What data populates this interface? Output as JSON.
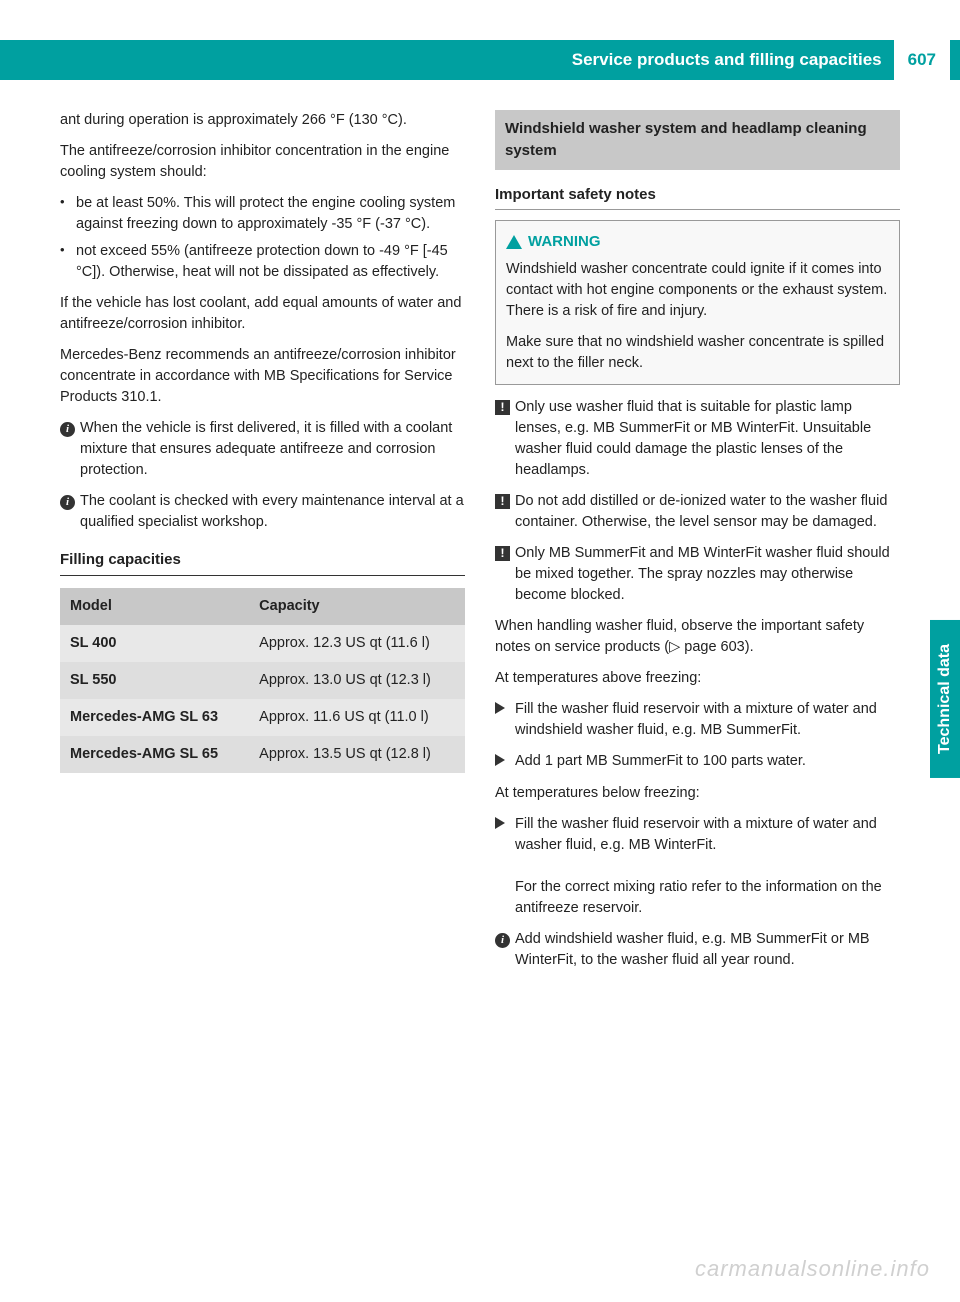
{
  "header": {
    "title": "Service products and filling capacities",
    "page_number": "607"
  },
  "side_tab": "Technical data",
  "left": {
    "p1": "ant during operation is approximately 266 °F (130 °C).",
    "p2": "The antifreeze/corrosion inhibitor concentration in the engine cooling system should:",
    "b1": "be at least 50%. This will protect the engine cooling system against freezing down to approximately -35 °F (-37 °C).",
    "b2": "not exceed 55% (antifreeze protection down to -49 °F [-45 °C]). Otherwise, heat will not be dissipated as effectively.",
    "p3": "If the vehicle has lost coolant, add equal amounts of water and antifreeze/corrosion inhibitor.",
    "p4": "Mercedes-Benz recommends an antifreeze/corrosion inhibitor concentrate in accordance with MB Specifications for Service Products 310.1.",
    "i1": "When the vehicle is first delivered, it is filled with a coolant mixture that ensures adequate antifreeze and corrosion protection.",
    "i2": "The coolant is checked with every maintenance interval at a qualified specialist workshop.",
    "filling_h": "Filling capacities",
    "table": {
      "h_model": "Model",
      "h_cap": "Capacity",
      "rows": [
        {
          "model": "SL 400",
          "cap": "Approx. 12.3 US qt (11.6 l)"
        },
        {
          "model": "SL 550",
          "cap": "Approx. 13.0 US qt (12.3 l)"
        },
        {
          "model": "Mercedes-AMG SL 63",
          "cap": "Approx. 11.6 US qt (11.0 l)"
        },
        {
          "model": "Mercedes-AMG SL 65",
          "cap": "Approx. 13.5 US qt (12.8 l)"
        }
      ]
    }
  },
  "right": {
    "box_title": "Windshield washer system and headlamp cleaning system",
    "sub_h": "Important safety notes",
    "warn_label": "WARNING",
    "warn_p1": "Windshield washer concentrate could ignite if it comes into contact with hot engine components or the exhaust system. There is a risk of fire and injury.",
    "warn_p2": "Make sure that no windshield washer concentrate is spilled next to the filler neck.",
    "n1": "Only use washer fluid that is suitable for plastic lamp lenses, e.g. MB SummerFit or MB WinterFit. Unsuitable washer fluid could damage the plastic lenses of the headlamps.",
    "n2": "Do not add distilled or de-ionized water to the washer fluid container. Otherwise, the level sensor may be damaged.",
    "n3": "Only MB SummerFit and MB WinterFit washer fluid should be mixed together. The spray nozzles may otherwise become blocked.",
    "p1": "When handling washer fluid, observe the important safety notes on service products (▷ page 603).",
    "p2": "At temperatures above freezing:",
    "s1": "Fill the washer fluid reservoir with a mixture of water and windshield washer fluid, e.g. MB SummerFit.",
    "s2": "Add 1 part MB SummerFit to 100 parts water.",
    "p3": "At temperatures below freezing:",
    "s3": "Fill the washer fluid reservoir with a mixture of water and washer fluid, e.g. MB WinterFit.",
    "s3b": "For the correct mixing ratio refer to the information on the antifreeze reservoir.",
    "i3": "Add windshield washer fluid, e.g. MB SummerFit or MB WinterFit, to the washer fluid all year round."
  },
  "watermark": "carmanualsonline.info"
}
